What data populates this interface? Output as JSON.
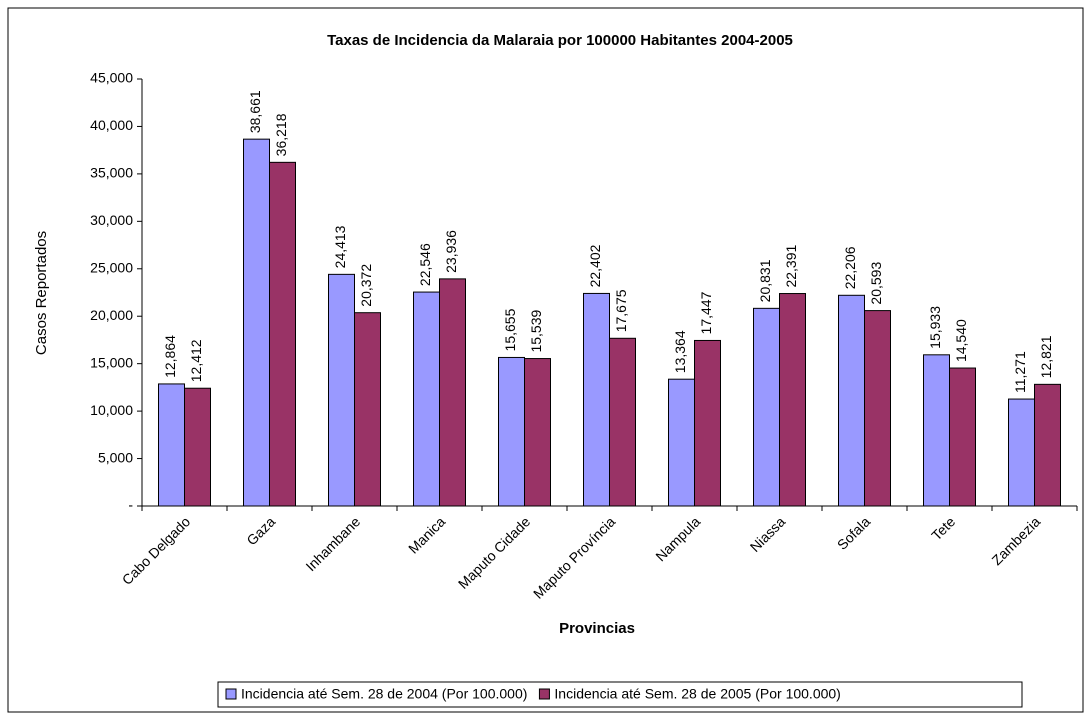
{
  "chart_data": {
    "type": "bar",
    "title": "Taxas de Incidencia da Malaraia por 100000 Habitantes 2004-2005",
    "x_label": "Provincias",
    "y_label": "Casos Reportados",
    "categories": [
      "Cabo Delgado",
      "Gaza",
      "Inhambane",
      "Manica",
      "Maputo Cidade",
      "Maputo Província",
      "Nampula",
      "Niassa",
      "Sofala",
      "Tete",
      "Zambezia"
    ],
    "series": [
      {
        "name": "Incidencia até Sem. 28 de 2004 (Por 100.000)",
        "color": "#9999ff",
        "values": [
          12864,
          38661,
          24413,
          22546,
          15655,
          22402,
          13364,
          20831,
          22206,
          15933,
          11271
        ],
        "value_labels": [
          "12,864",
          "38,661",
          "24,413",
          "22,546",
          "15,655",
          "22,402",
          "13,364",
          "20,831",
          "22,206",
          "15,933",
          "11,271"
        ]
      },
      {
        "name": "Incidencia até Sem. 28 de 2005 (Por 100.000)",
        "color": "#993366",
        "values": [
          12412,
          36218,
          20372,
          23936,
          15539,
          17675,
          17447,
          22391,
          20593,
          14540,
          12821
        ],
        "value_labels": [
          "12,412",
          "36,218",
          "20,372",
          "23,936",
          "15,539",
          "17,675",
          "17,447",
          "22,391",
          "20,593",
          "14,540",
          "12,821"
        ]
      }
    ],
    "ylim": [
      0,
      45000
    ],
    "yticks": [
      {
        "value": 0,
        "label": "-"
      },
      {
        "value": 5000,
        "label": "5,000"
      },
      {
        "value": 10000,
        "label": "10,000"
      },
      {
        "value": 15000,
        "label": "15,000"
      },
      {
        "value": 20000,
        "label": "20,000"
      },
      {
        "value": 25000,
        "label": "25,000"
      },
      {
        "value": 30000,
        "label": "30,000"
      },
      {
        "value": 35000,
        "label": "35,000"
      },
      {
        "value": 40000,
        "label": "40,000"
      },
      {
        "value": 45000,
        "label": "45,000"
      }
    ],
    "grid": false,
    "legend": "bottom"
  }
}
